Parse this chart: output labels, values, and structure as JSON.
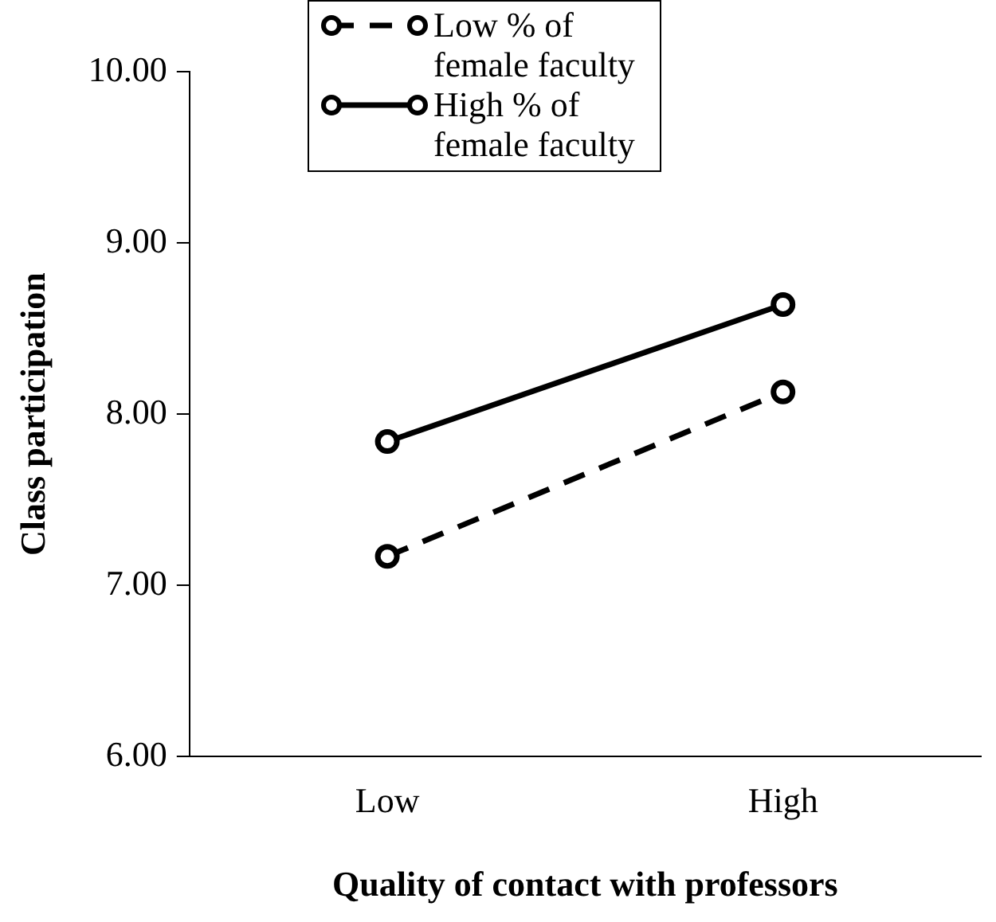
{
  "chart_data": {
    "type": "line",
    "xlabel": "Quality of contact with professors",
    "ylabel": "Class participation",
    "categories": [
      "Low",
      "High"
    ],
    "series": [
      {
        "name": "Low % of female faculty",
        "color": "#000000",
        "line_style": "dashed",
        "values": [
          7.17,
          8.13
        ]
      },
      {
        "name": "High % of female faculty",
        "color": "#000000",
        "line_style": "solid",
        "values": [
          7.84,
          8.64
        ]
      }
    ],
    "ylim": [
      6,
      10
    ],
    "yticks": [
      {
        "value": 6,
        "label": "6.00"
      },
      {
        "value": 7,
        "label": "7.00"
      },
      {
        "value": 8,
        "label": "8.00"
      },
      {
        "value": 9,
        "label": "9.00"
      },
      {
        "value": 10,
        "label": "10.00"
      }
    ],
    "grid": false,
    "legend": "top",
    "marker": "circle"
  }
}
